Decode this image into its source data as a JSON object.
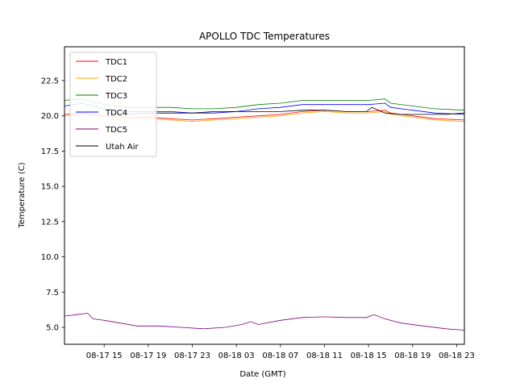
{
  "chart_data": {
    "type": "line",
    "title": "APOLLO TDC Temperatures",
    "xlabel": "Date (GMT)",
    "ylabel": "Temperature (C)",
    "x_unit": "hours since 08-17 00:00 GMT",
    "xlim": [
      11.4,
      47.7
    ],
    "ylim": [
      3.8,
      24.9
    ],
    "x_ticks": [
      {
        "value": 15,
        "label": "08-17 15"
      },
      {
        "value": 19,
        "label": "08-17 19"
      },
      {
        "value": 23,
        "label": "08-17 23"
      },
      {
        "value": 27,
        "label": "08-18 03"
      },
      {
        "value": 31,
        "label": "08-18 07"
      },
      {
        "value": 35,
        "label": "08-18 11"
      },
      {
        "value": 39,
        "label": "08-18 15"
      },
      {
        "value": 43,
        "label": "08-18 19"
      },
      {
        "value": 47,
        "label": "08-18 23"
      }
    ],
    "y_ticks": [
      {
        "value": 5.0,
        "label": "5.0"
      },
      {
        "value": 7.5,
        "label": "7.5"
      },
      {
        "value": 10.0,
        "label": "10.0"
      },
      {
        "value": 12.5,
        "label": "12.5"
      },
      {
        "value": 15.0,
        "label": "15.0"
      },
      {
        "value": 17.5,
        "label": "17.5"
      },
      {
        "value": 20.0,
        "label": "20.0"
      },
      {
        "value": 22.5,
        "label": "22.5"
      }
    ],
    "legend_position": "top-left",
    "series": [
      {
        "name": "TDC1",
        "color": "#ff0000",
        "x": [
          11.4,
          13,
          15,
          17,
          19,
          21,
          23,
          25,
          27,
          29,
          31,
          33,
          35,
          37,
          39,
          40.5,
          41,
          43,
          45,
          47.7
        ],
        "y": [
          20.1,
          20.2,
          20.0,
          19.9,
          19.9,
          19.8,
          19.7,
          19.8,
          19.9,
          20.0,
          20.1,
          20.3,
          20.4,
          20.3,
          20.3,
          20.4,
          20.2,
          20.0,
          19.8,
          19.7
        ]
      },
      {
        "name": "TDC2",
        "color": "#ffa500",
        "x": [
          11.4,
          13,
          15,
          17,
          19,
          21,
          23,
          25,
          27,
          29,
          31,
          33,
          35,
          37,
          39,
          40.5,
          41,
          43,
          45,
          47.7
        ],
        "y": [
          20.0,
          20.1,
          19.9,
          19.8,
          19.8,
          19.7,
          19.6,
          19.7,
          19.8,
          19.9,
          20.0,
          20.2,
          20.3,
          20.2,
          20.2,
          20.3,
          20.1,
          19.9,
          19.7,
          19.6
        ]
      },
      {
        "name": "TDC3",
        "color": "#008000",
        "x": [
          11.4,
          13,
          15,
          17,
          19,
          21,
          23,
          25,
          27,
          29,
          31,
          33,
          35,
          37,
          39,
          40.5,
          41,
          43,
          45,
          47.7
        ],
        "y": [
          21.1,
          21.2,
          20.8,
          20.6,
          20.6,
          20.6,
          20.5,
          20.5,
          20.6,
          20.8,
          20.9,
          21.1,
          21.1,
          21.1,
          21.1,
          21.2,
          20.9,
          20.7,
          20.5,
          20.4
        ]
      },
      {
        "name": "TDC4",
        "color": "#0000ff",
        "x": [
          11.4,
          13,
          15,
          17,
          19,
          21,
          23,
          25,
          27,
          29,
          31,
          33,
          35,
          37,
          39,
          40.5,
          41,
          43,
          45,
          47.7
        ],
        "y": [
          20.7,
          20.9,
          20.5,
          20.3,
          20.3,
          20.3,
          20.2,
          20.2,
          20.3,
          20.5,
          20.6,
          20.8,
          20.8,
          20.8,
          20.8,
          20.9,
          20.6,
          20.4,
          20.2,
          20.1
        ]
      },
      {
        "name": "TDC5",
        "color": "#800080",
        "x": [
          11.4,
          12.5,
          13.5,
          14.0,
          15.0,
          16.5,
          18,
          20,
          22,
          24,
          26,
          27.5,
          28.3,
          29,
          31,
          33,
          35,
          37,
          38.8,
          39.5,
          40.5,
          42,
          44,
          46,
          47.7
        ],
        "y": [
          5.8,
          5.9,
          6.0,
          5.6,
          5.5,
          5.3,
          5.1,
          5.1,
          5.0,
          4.9,
          5.0,
          5.2,
          5.4,
          5.2,
          5.5,
          5.7,
          5.75,
          5.7,
          5.7,
          5.9,
          5.6,
          5.3,
          5.1,
          4.9,
          4.8
        ]
      },
      {
        "name": "Utah Air",
        "color": "#000000",
        "x": [
          15.5,
          17,
          19,
          21,
          23,
          25,
          27,
          29,
          31,
          33,
          35,
          37,
          38.8,
          39.3,
          40.5,
          42,
          44,
          46,
          47.7
        ],
        "y": [
          20.2,
          20.1,
          20.2,
          20.2,
          20.2,
          20.3,
          20.3,
          20.3,
          20.3,
          20.4,
          20.4,
          20.3,
          20.3,
          20.6,
          20.2,
          20.1,
          20.1,
          20.1,
          20.2
        ]
      }
    ]
  }
}
